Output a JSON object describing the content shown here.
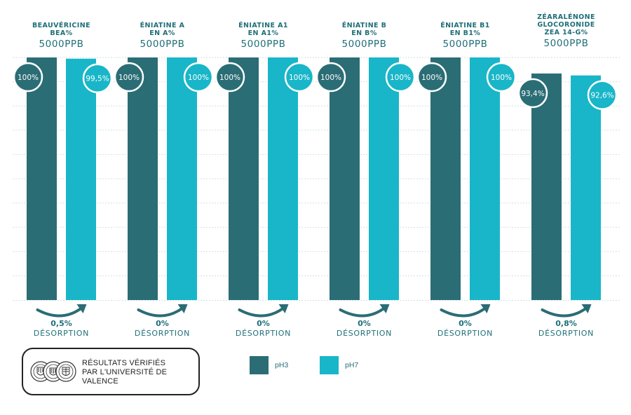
{
  "chart_data": {
    "type": "bar",
    "ylim": [
      0,
      100
    ],
    "grid": true,
    "legend_placement": "bottom",
    "categories": [
      {
        "line1": "BEAUVÉRICINE",
        "line2": "BEA%",
        "conc": "5000PPB"
      },
      {
        "line1": "ÉNIATINE A",
        "line2": "EN A%",
        "conc": "5000PPB"
      },
      {
        "line1": "ÉNIATINE A1",
        "line2": "EN A1%",
        "conc": "5000PPB"
      },
      {
        "line1": "ÉNIATINE B",
        "line2": "EN B%",
        "conc": "5000PPB"
      },
      {
        "line1": "ÉNIATINE B1",
        "line2": "EN B1%",
        "conc": "5000PPB"
      },
      {
        "line1": "ZÉARALÉNONE",
        "line1b": "GLOCORONIDE",
        "line2": "ZEA 14-G%",
        "conc": "5000PPB"
      }
    ],
    "series": [
      {
        "name": "pH3",
        "color": "#2a6d75",
        "values": [
          100,
          100,
          100,
          100,
          100,
          93.4
        ],
        "labels": [
          "100%",
          "100%",
          "100%",
          "100%",
          "100%",
          "93,4%"
        ]
      },
      {
        "name": "pH7",
        "color": "#18b6c8",
        "values": [
          99.5,
          100,
          100,
          100,
          100,
          92.6
        ],
        "labels": [
          "99,5%",
          "100%",
          "100%",
          "100%",
          "100%",
          "92,6%"
        ]
      }
    ],
    "desorption": [
      {
        "value": "0,5%",
        "label": "DÉSORPTION"
      },
      {
        "value": "0%",
        "label": "DÉSORPTION"
      },
      {
        "value": "0%",
        "label": "DÉSORPTION"
      },
      {
        "value": "0%",
        "label": "DÉSORPTION"
      },
      {
        "value": "0%",
        "label": "DÉSORPTION"
      },
      {
        "value": "0,8%",
        "label": "DÉSORPTION"
      }
    ],
    "arrow_color": "#2a6d75",
    "grid_color": "#cfe1e4"
  },
  "legend": [
    {
      "name": "pH3",
      "color": "#2a6d75"
    },
    {
      "name": "pH7",
      "color": "#18b6c8"
    }
  ],
  "badge": {
    "line1": "RÉSULTATS VÉRIFIÉS",
    "line2": "PAR L'UNIVERSITÉ DE",
    "line3": "VALENCE",
    "icon": "university-seal-icon",
    "seal_text": "UNIVERSITAT DE VALÈNCIA"
  }
}
